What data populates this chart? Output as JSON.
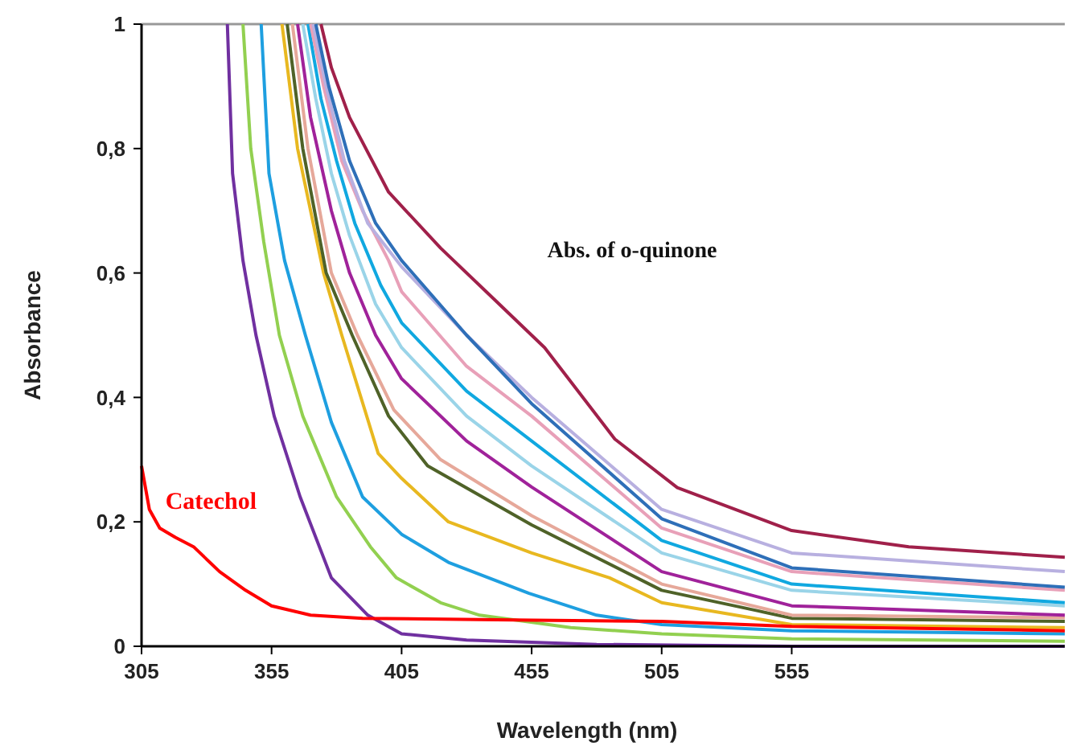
{
  "chart_data": {
    "type": "line",
    "xlabel": "Wavelength (nm)",
    "ylabel": "Absorbance",
    "xlim": [
      305,
      660
    ],
    "ylim": [
      0,
      1
    ],
    "xticks": [
      305,
      355,
      405,
      455,
      505,
      555
    ],
    "yticks": [
      0,
      {
        "value": 0.2,
        "label": "0,2"
      },
      {
        "value": 0.4,
        "label": "0,4"
      },
      {
        "value": 0.6,
        "label": "0,6"
      },
      {
        "value": 0.8,
        "label": "0,8"
      },
      1
    ],
    "grid": false,
    "marker": "none",
    "line_style": "solid",
    "annotations": [
      "Abs. of o-quinone"
    ],
    "series": [
      {
        "color": "#7030a0",
        "x": [
          338,
          340,
          344,
          349,
          356,
          366,
          378,
          392,
          405,
          430,
          480,
          555,
          660
        ],
        "values": [
          1,
          0.76,
          0.62,
          0.5,
          0.37,
          0.24,
          0.11,
          0.05,
          0.02,
          0.01,
          0.003,
          0,
          0
        ]
      },
      {
        "color": "#92d050",
        "x": [
          344,
          347,
          352,
          358,
          367,
          380,
          393,
          403,
          420,
          435,
          470,
          505,
          555,
          660
        ],
        "values": [
          1,
          0.8,
          0.65,
          0.5,
          0.37,
          0.24,
          0.16,
          0.11,
          0.07,
          0.05,
          0.03,
          0.02,
          0.012,
          0.008
        ]
      },
      {
        "color": "#1e9fe0",
        "x": [
          351,
          354,
          360,
          368,
          378,
          390,
          405,
          423,
          454,
          480,
          505,
          555,
          660
        ],
        "values": [
          1,
          0.76,
          0.62,
          0.5,
          0.36,
          0.24,
          0.18,
          0.135,
          0.085,
          0.05,
          0.035,
          0.025,
          0.02
        ]
      },
      {
        "color": "#e8b820",
        "x": [
          359,
          365,
          375,
          382,
          396,
          405,
          423,
          455,
          485,
          505,
          555,
          660
        ],
        "values": [
          1,
          0.8,
          0.6,
          0.5,
          0.31,
          0.27,
          0.2,
          0.15,
          0.11,
          0.07,
          0.035,
          0.03
        ]
      },
      {
        "color": "#4f6228",
        "x": [
          361,
          367,
          376,
          386,
          400,
          415,
          455,
          505,
          542,
          555,
          660
        ],
        "values": [
          1,
          0.8,
          0.6,
          0.5,
          0.37,
          0.29,
          0.195,
          0.09,
          0.057,
          0.045,
          0.04
        ]
      },
      {
        "color": "#e6a89a",
        "x": [
          363,
          369,
          378,
          388,
          402,
          420,
          455,
          505,
          555,
          660
        ],
        "values": [
          1,
          0.8,
          0.6,
          0.5,
          0.38,
          0.3,
          0.21,
          0.1,
          0.05,
          0.046
        ]
      },
      {
        "color": "#a0229a",
        "x": [
          365,
          370,
          378,
          385,
          395,
          405,
          430,
          455,
          505,
          555,
          660
        ],
        "values": [
          1,
          0.85,
          0.7,
          0.6,
          0.5,
          0.43,
          0.33,
          0.256,
          0.12,
          0.065,
          0.05
        ]
      },
      {
        "color": "#9ad4e8",
        "x": [
          367,
          372,
          378,
          385,
          395,
          405,
          430,
          455,
          505,
          555,
          660
        ],
        "values": [
          1,
          0.88,
          0.76,
          0.66,
          0.55,
          0.48,
          0.37,
          0.29,
          0.15,
          0.09,
          0.065
        ]
      },
      {
        "color": "#10a8e0",
        "x": [
          369,
          374,
          380,
          387,
          397,
          405,
          430,
          455,
          505,
          555,
          660
        ],
        "values": [
          1,
          0.88,
          0.78,
          0.68,
          0.58,
          0.52,
          0.41,
          0.33,
          0.17,
          0.1,
          0.07
        ]
      },
      {
        "color": "#e8a0b8",
        "x": [
          370,
          375,
          382,
          390,
          400,
          405,
          430,
          455,
          505,
          555,
          660
        ],
        "values": [
          1,
          0.9,
          0.78,
          0.7,
          0.62,
          0.57,
          0.45,
          0.37,
          0.19,
          0.12,
          0.09
        ]
      },
      {
        "color": "#b8b0e0",
        "x": [
          371,
          376,
          383,
          392,
          405,
          430,
          455,
          505,
          555,
          660
        ],
        "values": [
          1,
          0.9,
          0.78,
          0.68,
          0.61,
          0.5,
          0.4,
          0.22,
          0.15,
          0.12
        ]
      },
      {
        "color": "#2e6fb8",
        "x": [
          372,
          377,
          385,
          395,
          405,
          430,
          455,
          505,
          555,
          660
        ],
        "values": [
          1,
          0.9,
          0.78,
          0.68,
          0.62,
          0.5,
          0.39,
          0.205,
          0.126,
          0.095
        ]
      },
      {
        "color": "#a0204a",
        "x": [
          374,
          378,
          385,
          400,
          420,
          440,
          460,
          487,
          511,
          555,
          600,
          660
        ],
        "values": [
          1,
          0.93,
          0.85,
          0.73,
          0.64,
          0.56,
          0.48,
          0.333,
          0.255,
          0.186,
          0.16,
          0.143
        ]
      },
      {
        "name": "Catechol",
        "color": "#ff0000",
        "x": [
          305,
          308,
          312,
          318,
          325,
          335,
          345,
          355,
          370,
          390,
          455,
          505,
          555,
          660
        ],
        "values": [
          0.29,
          0.22,
          0.19,
          0.175,
          0.16,
          0.12,
          0.09,
          0.065,
          0.05,
          0.045,
          0.042,
          0.04,
          0.032,
          0.025
        ]
      }
    ]
  }
}
